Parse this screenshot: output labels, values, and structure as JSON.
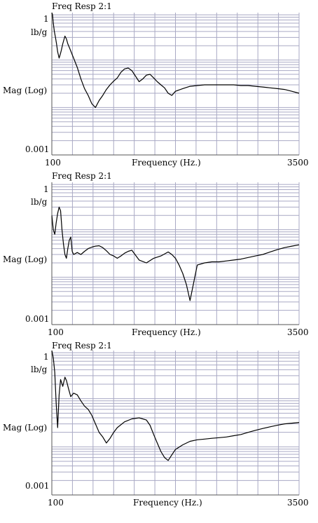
{
  "chart_data": [
    {
      "type": "line",
      "title": "Freq Resp 2:1",
      "xlabel": "Frequency (Hz.)",
      "ylabel": "Mag (Log)",
      "yunit": "lb/g",
      "ytop_label": "1",
      "ybottom_label": "0.001",
      "xmin_label": "100",
      "xmax_label": "3500",
      "x_scale": "linear",
      "y_scale": "log",
      "xlim": [
        100,
        3500
      ],
      "ylim": [
        0.001,
        1
      ],
      "grid": true,
      "series": [
        {
          "x": [
            100,
            110,
            120,
            135,
            150,
            165,
            180,
            200,
            220,
            230,
            250,
            280,
            300,
            320,
            350,
            380,
            400,
            450,
            500,
            550,
            600,
            650,
            700,
            750,
            800,
            850,
            900,
            950,
            1000,
            1050,
            1100,
            1150,
            1200,
            1250,
            1300,
            1350,
            1400,
            1450,
            1500,
            1550,
            1600,
            1650,
            1700,
            1750,
            1800,
            1900,
            2000,
            2100,
            2200,
            2300,
            2400,
            2500,
            2600,
            2700,
            2800,
            2900,
            3000,
            3100,
            3200,
            3300,
            3400,
            3500
          ],
          "y": [
            1.0,
            0.9,
            0.6,
            0.4,
            0.3,
            0.22,
            0.15,
            0.11,
            0.14,
            0.16,
            0.22,
            0.32,
            0.28,
            0.22,
            0.17,
            0.13,
            0.11,
            0.07,
            0.04,
            0.025,
            0.018,
            0.012,
            0.01,
            0.014,
            0.018,
            0.024,
            0.03,
            0.036,
            0.042,
            0.055,
            0.065,
            0.068,
            0.06,
            0.046,
            0.035,
            0.04,
            0.048,
            0.05,
            0.042,
            0.035,
            0.03,
            0.026,
            0.02,
            0.018,
            0.022,
            0.025,
            0.028,
            0.029,
            0.03,
            0.03,
            0.03,
            0.03,
            0.03,
            0.029,
            0.029,
            0.028,
            0.027,
            0.026,
            0.025,
            0.024,
            0.022,
            0.02
          ]
        }
      ]
    },
    {
      "type": "line",
      "title": "Freq Resp 2:1",
      "xlabel": "Frequency (Hz.)",
      "ylabel": "Mag (Log)",
      "yunit": "lb/g",
      "ytop_label": "1",
      "ybottom_label": "0.001",
      "xmin_label": "100",
      "xmax_label": "3500",
      "x_scale": "linear",
      "y_scale": "log",
      "xlim": [
        100,
        3500
      ],
      "ylim": [
        0.001,
        1
      ],
      "grid": true,
      "series": [
        {
          "x": [
            100,
            120,
            140,
            160,
            180,
            200,
            220,
            240,
            260,
            280,
            300,
            320,
            340,
            360,
            380,
            400,
            450,
            500,
            550,
            600,
            650,
            700,
            750,
            800,
            850,
            900,
            950,
            1000,
            1050,
            1100,
            1150,
            1200,
            1300,
            1400,
            1500,
            1600,
            1700,
            1750,
            1800,
            1850,
            1900,
            1950,
            2000,
            2100,
            2200,
            2300,
            2400,
            2500,
            2600,
            2700,
            2800,
            2900,
            3000,
            3050,
            3100,
            3200,
            3300,
            3400,
            3500
          ],
          "y": [
            0.2,
            0.1,
            0.08,
            0.14,
            0.22,
            0.3,
            0.25,
            0.1,
            0.05,
            0.03,
            0.025,
            0.04,
            0.06,
            0.07,
            0.035,
            0.03,
            0.033,
            0.03,
            0.035,
            0.04,
            0.043,
            0.045,
            0.046,
            0.042,
            0.036,
            0.03,
            0.028,
            0.025,
            0.028,
            0.032,
            0.035,
            0.037,
            0.023,
            0.02,
            0.025,
            0.028,
            0.034,
            0.03,
            0.025,
            0.018,
            0.012,
            0.007,
            0.0032,
            0.018,
            0.02,
            0.021,
            0.021,
            0.022,
            0.023,
            0.024,
            0.026,
            0.028,
            0.03,
            0.032,
            0.034,
            0.038,
            0.042,
            0.045,
            0.048
          ]
        }
      ]
    },
    {
      "type": "line",
      "title": "Freq Resp 2:1",
      "xlabel": "Frequency (Hz.)",
      "ylabel": "Mag (Log)",
      "yunit": "lb/g",
      "ytop_label": "1",
      "ybottom_label": "0.001",
      "xmin_label": "100",
      "xmax_label": "3500",
      "x_scale": "linear",
      "y_scale": "log",
      "xlim": [
        100,
        3500
      ],
      "ylim": [
        0.001,
        1
      ],
      "grid": true,
      "series": [
        {
          "x": [
            100,
            120,
            140,
            160,
            180,
            200,
            220,
            250,
            280,
            300,
            330,
            360,
            400,
            450,
            500,
            550,
            600,
            650,
            700,
            750,
            800,
            850,
            900,
            950,
            1000,
            1100,
            1200,
            1300,
            1400,
            1450,
            1500,
            1550,
            1600,
            1650,
            1700,
            1750,
            1800,
            1900,
            2000,
            2100,
            2200,
            2300,
            2400,
            2500,
            2600,
            2700,
            2800,
            2900,
            3000,
            3100,
            3200,
            3300,
            3400,
            3500
          ],
          "y": [
            1.0,
            0.7,
            0.35,
            0.08,
            0.025,
            0.12,
            0.25,
            0.18,
            0.28,
            0.24,
            0.16,
            0.11,
            0.13,
            0.12,
            0.09,
            0.07,
            0.06,
            0.045,
            0.03,
            0.02,
            0.016,
            0.012,
            0.015,
            0.02,
            0.025,
            0.033,
            0.038,
            0.04,
            0.036,
            0.028,
            0.018,
            0.012,
            0.008,
            0.006,
            0.0052,
            0.0068,
            0.0088,
            0.011,
            0.013,
            0.014,
            0.0145,
            0.015,
            0.0155,
            0.016,
            0.017,
            0.018,
            0.02,
            0.022,
            0.024,
            0.026,
            0.028,
            0.03,
            0.031,
            0.032
          ]
        }
      ]
    }
  ]
}
